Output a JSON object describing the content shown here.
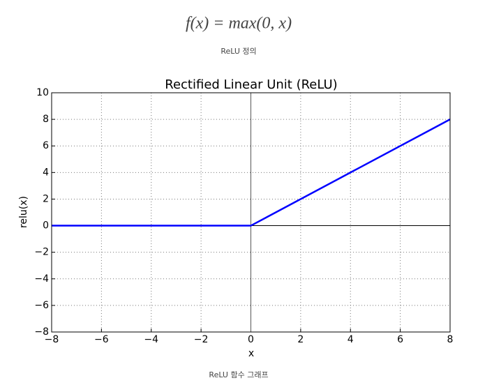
{
  "formula": "f(x) = max(0, x)",
  "caption_top": "ReLU 정의",
  "caption_bottom": "ReLU 함수 그래프",
  "chart_data": {
    "type": "line",
    "title": "Rectified Linear Unit (ReLU)",
    "x_label": "x",
    "y_label": "relu(x)",
    "x": [
      -8,
      0,
      8
    ],
    "series": [
      {
        "name": "relu",
        "color": "#0000ff",
        "values": [
          0,
          0,
          8
        ]
      }
    ],
    "xlim": [
      -8,
      8
    ],
    "xticks": [
      {
        "value": -8,
        "label": "−8"
      },
      {
        "value": -6,
        "label": "−6"
      },
      {
        "value": -4,
        "label": "−4"
      },
      {
        "value": -2,
        "label": "−2"
      },
      0,
      2,
      4,
      6,
      8
    ],
    "ylim": [
      -8,
      10
    ],
    "yticks": [
      {
        "value": -8,
        "label": "−8"
      },
      {
        "value": -6,
        "label": "−6"
      },
      {
        "value": -4,
        "label": "−4"
      },
      {
        "value": -2,
        "label": "−2"
      },
      0,
      2,
      4,
      6,
      8,
      10
    ],
    "grid": true,
    "zero_lines": true
  }
}
